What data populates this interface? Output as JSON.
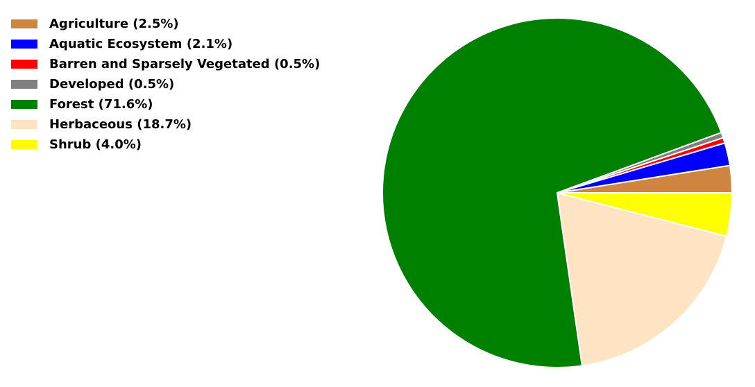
{
  "chart_data": {
    "type": "pie",
    "categories": [
      "Agriculture",
      "Aquatic Ecosystem",
      "Barren and Sparsely Vegetated",
      "Developed",
      "Forest",
      "Herbaceous",
      "Shrub"
    ],
    "values": [
      2.5,
      2.1,
      0.5,
      0.5,
      71.6,
      18.7,
      4.0
    ],
    "legend_labels": [
      "Agriculture (2.5%)",
      "Aquatic Ecosystem (2.1%)",
      "Barren and Sparsely Vegetated (0.5%)",
      "Developed (0.5%)",
      "Forest (71.6%)",
      "Herbaceous (18.7%)",
      "Shrub (4.0%)"
    ],
    "colors": [
      "#cd853f",
      "#0000ff",
      "#ff0000",
      "#808080",
      "#008000",
      "#ffe4c4",
      "#ffff00"
    ],
    "start_angle_deg": 0,
    "direction": "counterclockwise",
    "legend_placement": "top-left",
    "title": ""
  }
}
